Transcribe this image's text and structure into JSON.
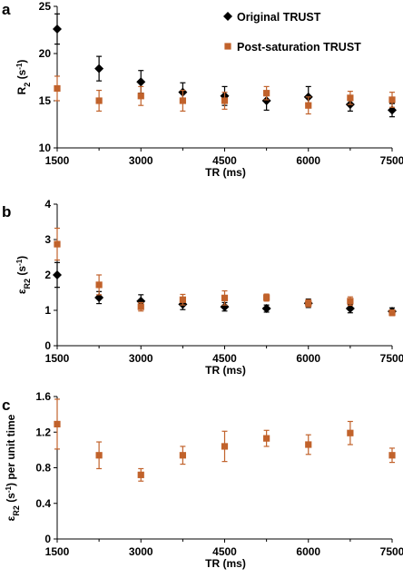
{
  "colors": {
    "original": "#000000",
    "post": "#c1622b"
  },
  "chart_data": [
    {
      "panel_label": "a",
      "type": "scatter",
      "ylabel": {
        "main": "R",
        "sub": "2",
        "unit_pre": " (s",
        "sup": "-1",
        "unit_post": ")"
      },
      "xlabel": "TR (ms)",
      "xlim": [
        1500,
        7500
      ],
      "ylim": [
        10,
        25
      ],
      "xticks": [
        "1500",
        "3000",
        "4500",
        "6000",
        "7500"
      ],
      "yticks": [
        "10",
        "15",
        "20",
        "25"
      ],
      "legend": {
        "placement": "top-right",
        "entries": [
          "Original TRUST",
          "Post-saturation TRUST"
        ]
      },
      "series": [
        {
          "name": "Original TRUST",
          "marker": "diamond",
          "color": "#000000",
          "x": [
            1500,
            2250,
            3000,
            3750,
            4500,
            5250,
            6000,
            6750,
            7500
          ],
          "y": [
            22.6,
            18.4,
            17.0,
            15.9,
            15.5,
            15.0,
            15.4,
            14.6,
            14.0
          ],
          "err": [
            1.6,
            1.3,
            1.2,
            1.0,
            1.0,
            1.0,
            1.1,
            0.7,
            0.7
          ]
        },
        {
          "name": "Post-saturation TRUST",
          "marker": "square",
          "color": "#c1622b",
          "x": [
            1500,
            2250,
            3000,
            3750,
            4500,
            5250,
            6000,
            6750,
            7500
          ],
          "y": [
            16.3,
            15.0,
            15.5,
            15.0,
            15.0,
            15.8,
            14.5,
            15.3,
            15.1
          ],
          "err": [
            1.3,
            1.1,
            1.0,
            1.1,
            0.9,
            0.7,
            0.9,
            0.7,
            0.8
          ]
        }
      ]
    },
    {
      "panel_label": "b",
      "type": "scatter",
      "ylabel": {
        "main": "ε",
        "sub": "R2",
        "unit_pre": " (s",
        "sup": "-1",
        "unit_post": ")"
      },
      "xlabel": "TR (ms)",
      "xlim": [
        1500,
        7500
      ],
      "ylim": [
        0,
        4
      ],
      "xticks": [
        "1500",
        "3000",
        "4500",
        "6000",
        "7500"
      ],
      "yticks": [
        "0",
        "1",
        "2",
        "3",
        "4"
      ],
      "series": [
        {
          "name": "Original TRUST",
          "marker": "diamond",
          "color": "#000000",
          "x": [
            1500,
            2250,
            3000,
            3750,
            4500,
            5250,
            6000,
            6750,
            7500
          ],
          "y": [
            2.0,
            1.36,
            1.26,
            1.17,
            1.1,
            1.05,
            1.2,
            1.05,
            0.97
          ],
          "err": [
            0.35,
            0.17,
            0.18,
            0.15,
            0.12,
            0.1,
            0.12,
            0.12,
            0.1
          ]
        },
        {
          "name": "Post-saturation TRUST",
          "marker": "square",
          "color": "#c1622b",
          "x": [
            1500,
            2250,
            3000,
            3750,
            4500,
            5250,
            6000,
            6750,
            7500
          ],
          "y": [
            2.87,
            1.72,
            1.1,
            1.3,
            1.35,
            1.36,
            1.2,
            1.26,
            0.93
          ],
          "err": [
            0.45,
            0.28,
            0.12,
            0.15,
            0.2,
            0.1,
            0.1,
            0.12,
            0.08
          ]
        }
      ]
    },
    {
      "panel_label": "c",
      "type": "scatter",
      "ylabel": {
        "main": "ε",
        "sub": "R2",
        "unit_pre": " (s",
        "sup": "-1",
        "unit_post": ") per unit time"
      },
      "xlabel": "TR (ms)",
      "xlim": [
        1500,
        7500
      ],
      "ylim": [
        0,
        1.6
      ],
      "xticks": [
        "1500",
        "3000",
        "4500",
        "6000",
        "7500"
      ],
      "yticks": [
        "0",
        "0.4",
        "0.8",
        "1.2",
        "1.6"
      ],
      "series": [
        {
          "name": "Post-saturation TRUST",
          "marker": "square",
          "color": "#c1622b",
          "x": [
            1500,
            2250,
            3000,
            3750,
            4500,
            5250,
            6000,
            6750,
            7500
          ],
          "y": [
            1.29,
            0.94,
            0.72,
            0.94,
            1.04,
            1.13,
            1.06,
            1.19,
            0.94
          ],
          "err": [
            0.28,
            0.15,
            0.07,
            0.1,
            0.17,
            0.09,
            0.11,
            0.13,
            0.08
          ]
        }
      ]
    }
  ]
}
